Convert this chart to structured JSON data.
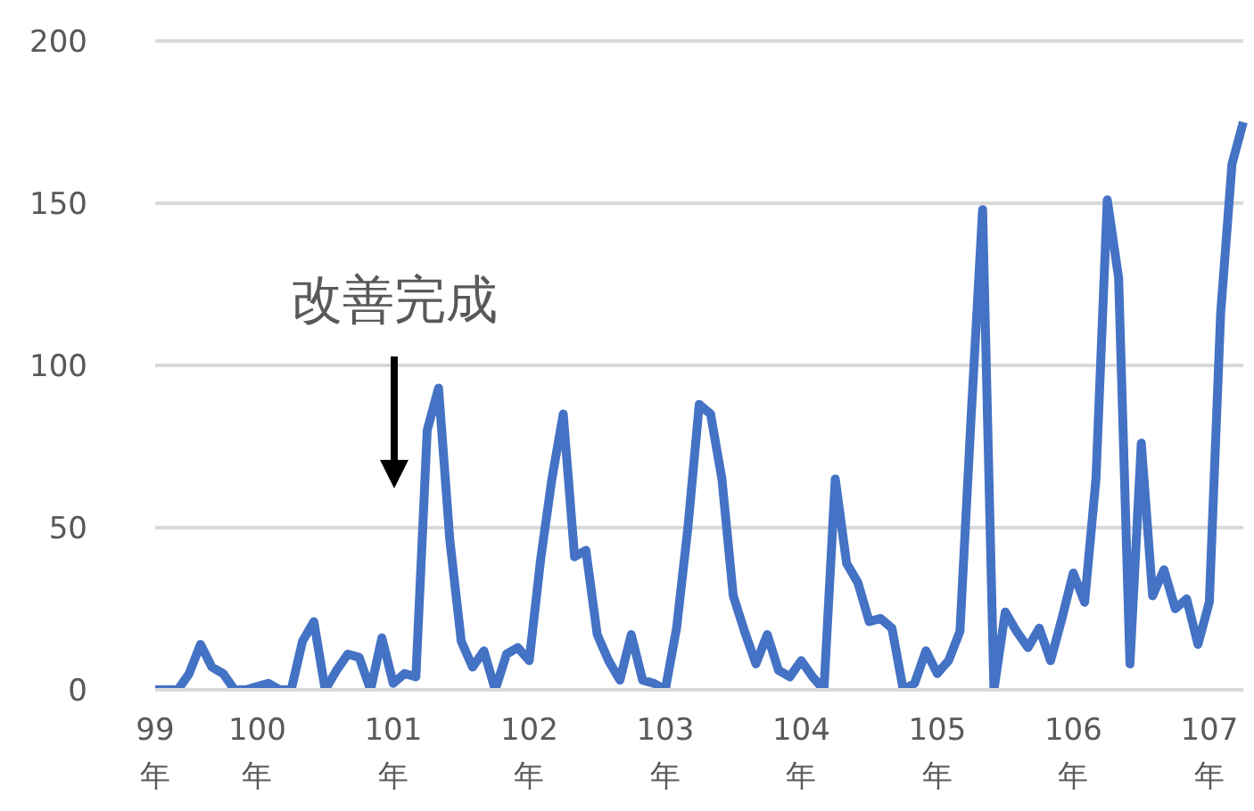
{
  "chart_data": {
    "type": "line",
    "categories": [
      "99\n年",
      null,
      null,
      null,
      null,
      null,
      null,
      null,
      null,
      "100\n年",
      null,
      null,
      null,
      null,
      null,
      null,
      null,
      null,
      null,
      null,
      null,
      "101\n年",
      null,
      null,
      null,
      null,
      null,
      null,
      null,
      null,
      null,
      null,
      null,
      "102\n年",
      null,
      null,
      null,
      null,
      null,
      null,
      null,
      null,
      null,
      null,
      null,
      "103\n年",
      null,
      null,
      null,
      null,
      null,
      null,
      null,
      null,
      null,
      null,
      null,
      "104\n年",
      null,
      null,
      null,
      null,
      null,
      null,
      null,
      null,
      null,
      null,
      null,
      "105\n年",
      null,
      null,
      null,
      null,
      null,
      null,
      null,
      null,
      null,
      null,
      null,
      "106\n年",
      null,
      null,
      null,
      null,
      null,
      null,
      null,
      null,
      null,
      null,
      null,
      "107\n年",
      null,
      null,
      null
    ],
    "series": [
      {
        "color": "#4472c4",
        "values": [
          0,
          0,
          0,
          5,
          14,
          7,
          5,
          0,
          0,
          1,
          2,
          0,
          0,
          15,
          21,
          0,
          6,
          11,
          10,
          0,
          16,
          2,
          5,
          4,
          80,
          93,
          46,
          15,
          7,
          12,
          0,
          11,
          13,
          9,
          40,
          65,
          85,
          41,
          43,
          17,
          9,
          3,
          17,
          3,
          2,
          0,
          19,
          50,
          88,
          85,
          65,
          29,
          18,
          8,
          17,
          6,
          4,
          9,
          4,
          0,
          65,
          39,
          33,
          21,
          22,
          19,
          0,
          2,
          12,
          5,
          9,
          18,
          85,
          148,
          0,
          24,
          18,
          13,
          19,
          9,
          22,
          36,
          27,
          65,
          151,
          127,
          8,
          76,
          29,
          37,
          25,
          28,
          14,
          27,
          116,
          162,
          175
        ]
      }
    ],
    "ylim": [
      0,
      200
    ],
    "yticks": [
      0,
      50,
      100,
      150,
      200
    ],
    "grid": "y",
    "marker": "none",
    "line_style": "solid",
    "annotations": [
      "改善完成"
    ]
  }
}
